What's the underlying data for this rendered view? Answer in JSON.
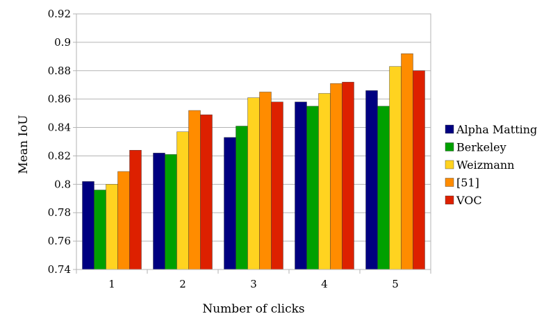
{
  "chart_data": {
    "type": "bar",
    "title": "",
    "xlabel": "Number of clicks",
    "ylabel": "Mean IoU",
    "categories": [
      "1",
      "2",
      "3",
      "4",
      "5"
    ],
    "ylim": [
      0.74,
      0.92
    ],
    "yticks": [
      "0.74",
      "0.76",
      "0.78",
      "0.8",
      "0.82",
      "0.84",
      "0.86",
      "0.88",
      "0.9",
      "0.92"
    ],
    "grid": "horizontal",
    "legend_position": "right",
    "series": [
      {
        "name": "Alpha Matting",
        "color": "#000080",
        "values": [
          0.802,
          0.822,
          0.833,
          0.858,
          0.866
        ]
      },
      {
        "name": "Berkeley",
        "color": "#00a000",
        "values": [
          0.796,
          0.821,
          0.841,
          0.855,
          0.855
        ]
      },
      {
        "name": "Weizmann",
        "color": "#ffd320",
        "values": [
          0.8,
          0.837,
          0.861,
          0.864,
          0.883
        ]
      },
      {
        "name": "[51]",
        "color": "#ff8c00",
        "values": [
          0.809,
          0.852,
          0.865,
          0.871,
          0.892
        ]
      },
      {
        "name": "VOC",
        "color": "#dd2000",
        "values": [
          0.824,
          0.849,
          0.858,
          0.872,
          0.88
        ]
      }
    ]
  }
}
